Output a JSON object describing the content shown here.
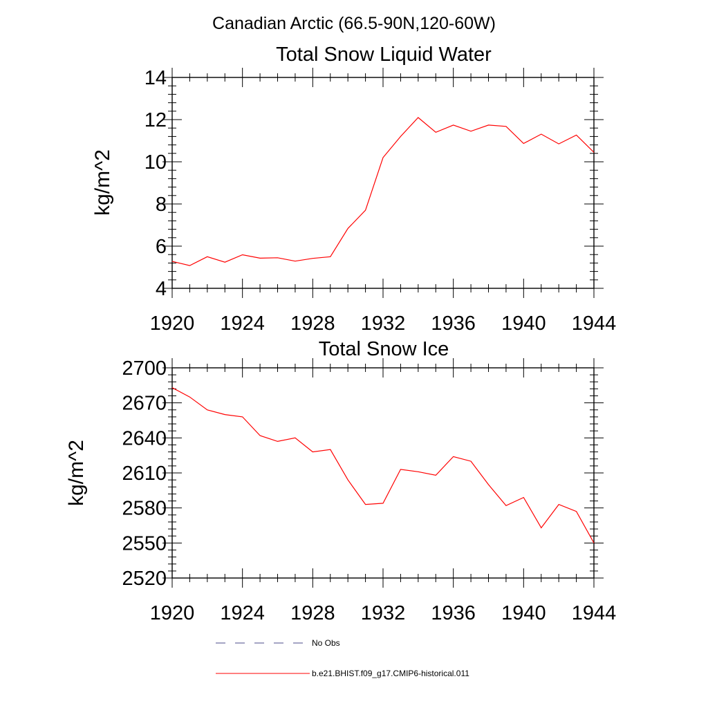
{
  "figure": {
    "title": "Canadian Arctic (66.5-90N,120-60W)"
  },
  "chart_data": [
    {
      "type": "line",
      "title": "Total Snow Liquid Water",
      "xlabel": "",
      "ylabel": "kg/m^2",
      "xlim": [
        1920,
        1944
      ],
      "ylim": [
        4,
        14
      ],
      "xticks": [
        "1920",
        "1924",
        "1928",
        "1932",
        "1936",
        "1940",
        "1944"
      ],
      "xtick_values": [
        1920,
        1924,
        1928,
        1932,
        1936,
        1940,
        1944
      ],
      "yticks": [
        "4",
        "6",
        "8",
        "10",
        "12",
        "14"
      ],
      "ytick_values": [
        4,
        6,
        8,
        10,
        12,
        14
      ],
      "grid": false,
      "series": [
        {
          "name": "b.e21.BHIST.f09_g17.CMIP6-historical.011",
          "color": "#ff0000",
          "x": [
            1920,
            1921,
            1922,
            1923,
            1924,
            1925,
            1926,
            1927,
            1928,
            1929,
            1930,
            1931,
            1932,
            1933,
            1934,
            1935,
            1936,
            1937,
            1938,
            1939,
            1940,
            1941,
            1942,
            1943,
            1944
          ],
          "y": [
            5.28,
            5.08,
            5.5,
            5.24,
            5.59,
            5.43,
            5.45,
            5.29,
            5.42,
            5.5,
            6.84,
            7.7,
            10.2,
            11.2,
            12.1,
            11.4,
            11.74,
            11.45,
            11.74,
            11.68,
            10.87,
            11.31,
            10.85,
            11.27,
            10.45
          ]
        }
      ]
    },
    {
      "type": "line",
      "title": "Total Snow Ice",
      "xlabel": "",
      "ylabel": "kg/m^2",
      "xlim": [
        1920,
        1944
      ],
      "ylim": [
        2520,
        2700
      ],
      "xticks": [
        "1920",
        "1924",
        "1928",
        "1932",
        "1936",
        "1940",
        "1944"
      ],
      "xtick_values": [
        1920,
        1924,
        1928,
        1932,
        1936,
        1940,
        1944
      ],
      "yticks": [
        "2520",
        "2550",
        "2580",
        "2610",
        "2640",
        "2670",
        "2700"
      ],
      "ytick_values": [
        2520,
        2550,
        2580,
        2610,
        2640,
        2670,
        2700
      ],
      "grid": false,
      "series": [
        {
          "name": "b.e21.BHIST.f09_g17.CMIP6-historical.011",
          "color": "#ff0000",
          "x": [
            1920,
            1921,
            1922,
            1923,
            1924,
            1925,
            1926,
            1927,
            1928,
            1929,
            1930,
            1931,
            1932,
            1933,
            1934,
            1935,
            1936,
            1937,
            1938,
            1939,
            1940,
            1941,
            1942,
            1943,
            1944
          ],
          "y": [
            2683,
            2675,
            2664,
            2660,
            2658,
            2642,
            2637,
            2640,
            2628,
            2630,
            2604,
            2583,
            2584,
            2613,
            2611,
            2608,
            2624,
            2620,
            2600,
            2582,
            2589,
            2563,
            2583,
            2577,
            2550
          ]
        }
      ]
    }
  ],
  "legend": {
    "placement": "bottom-center",
    "entries": [
      {
        "label": "No Obs",
        "color": "#4a4a8a",
        "style": "dashed"
      },
      {
        "label": "b.e21.BHIST.f09_g17.CMIP6-historical.011",
        "color": "#ff0000",
        "style": "solid"
      }
    ]
  }
}
